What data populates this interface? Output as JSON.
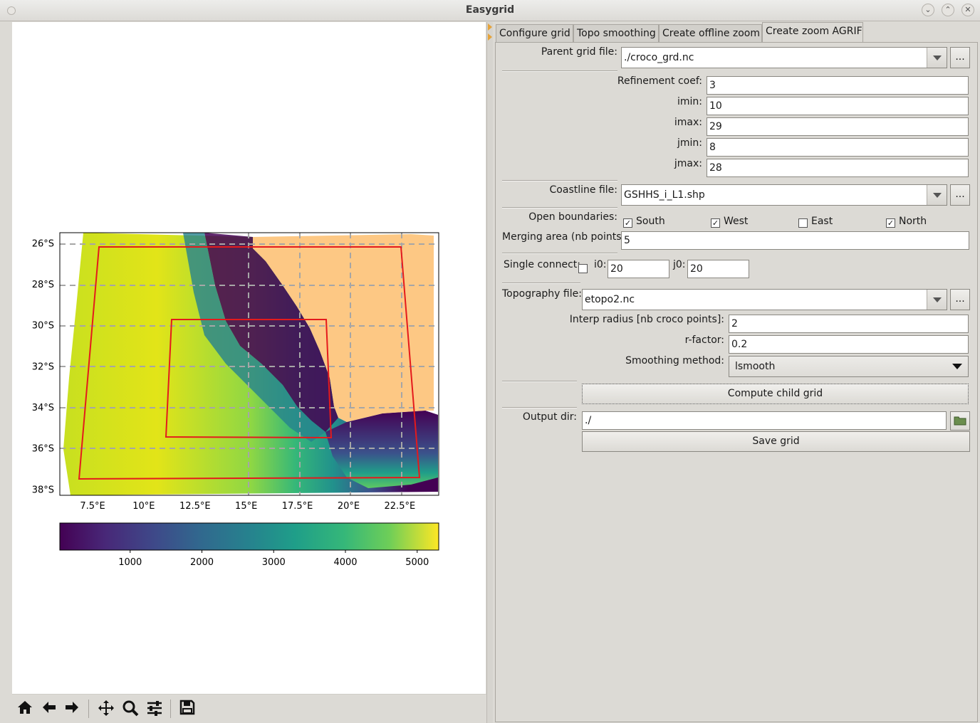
{
  "window": {
    "title": "Easygrid"
  },
  "tabs": [
    {
      "label": "Configure grid",
      "active": false
    },
    {
      "label": "Topo smoothing",
      "active": false
    },
    {
      "label": "Create offline zoom",
      "active": false
    },
    {
      "label": "Create zoom AGRIF",
      "active": true
    }
  ],
  "form": {
    "parent_grid": {
      "label": "Parent grid file:",
      "value": "./croco_grd.nc",
      "browse": "..."
    },
    "refinement": {
      "label": "Refinement coef:",
      "value": "3"
    },
    "imin": {
      "label": "imin:",
      "value": "10"
    },
    "imax": {
      "label": "imax:",
      "value": "29"
    },
    "jmin": {
      "label": "jmin:",
      "value": "8"
    },
    "jmax": {
      "label": "jmax:",
      "value": "28"
    },
    "coastline": {
      "label": "Coastline file:",
      "value": "GSHHS_i_L1.shp",
      "browse": "..."
    },
    "open_boundaries": {
      "label": "Open boundaries:",
      "options": [
        {
          "label": "South",
          "checked": true
        },
        {
          "label": "West",
          "checked": true
        },
        {
          "label": "East",
          "checked": false
        },
        {
          "label": "North",
          "checked": true
        }
      ]
    },
    "merging": {
      "label": "Merging area (nb points):",
      "value": "5"
    },
    "single_connect": {
      "label": "Single connect:",
      "checked": false,
      "i0_label": "i0:",
      "i0": "20",
      "j0_label": "j0:",
      "j0": "20"
    },
    "topography": {
      "label": "Topography file:",
      "value": "etopo2.nc",
      "browse": "..."
    },
    "interp_radius": {
      "label": "Interp radius [nb croco points]:",
      "value": "2"
    },
    "rfactor": {
      "label": "r-factor:",
      "value": "0.2"
    },
    "smoothing": {
      "label": "Smoothing method:",
      "value": "lsmooth"
    },
    "compute_button": "Compute child grid",
    "output_dir": {
      "label": "Output dir:",
      "value": "./"
    },
    "save_button": "Save grid"
  },
  "icons": {
    "home": "home-icon",
    "back": "back-arrow-icon",
    "forward": "forward-arrow-icon",
    "pan": "pan-icon",
    "zoom": "zoom-icon",
    "configure": "sliders-icon",
    "save": "save-icon",
    "folder": "folder-icon"
  },
  "colors": {
    "land": "#fdc884",
    "box": "#e41a1c",
    "viridis": [
      "#440154",
      "#3b528b",
      "#21918c",
      "#5ec962",
      "#fde725"
    ]
  },
  "chart_data": {
    "type": "heatmap",
    "title": "",
    "xticks": [
      "7.5°E",
      "10°E",
      "12.5°E",
      "15°E",
      "17.5°E",
      "20°E",
      "22.5°E"
    ],
    "xtick_values": [
      7.5,
      10,
      12.5,
      15,
      17.5,
      20,
      22.5
    ],
    "yticks": [
      "26°S",
      "28°S",
      "30°S",
      "32°S",
      "34°S",
      "36°S",
      "38°S"
    ],
    "ytick_values": [
      -26,
      -28,
      -30,
      -32,
      -34,
      -36,
      -38
    ],
    "xlim": [
      5.9,
      24.4
    ],
    "ylim": [
      -38.3,
      -25.5
    ],
    "grid": true,
    "colorbar": {
      "ticks": [
        "1000",
        "2000",
        "3000",
        "4000",
        "5000"
      ],
      "tick_values": [
        1000,
        2000,
        3000,
        4000,
        5000
      ],
      "range": [
        20,
        5300
      ],
      "colormap": "viridis"
    }
  }
}
